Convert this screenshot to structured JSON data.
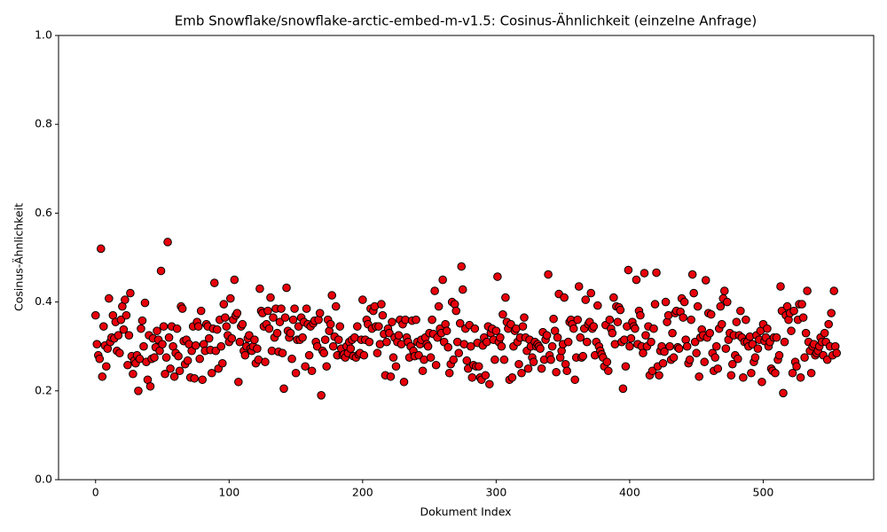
{
  "chart_data": {
    "type": "scatter",
    "title": "Emb Snowflake/snowflake-arctic-embed-m-v1.5: Cosinus-Ähnlichkeit (einzelne Anfrage)",
    "x_label": "Dokument Index",
    "y_label": "Cosinus-Ähnlichkeit",
    "color": "#e8000b",
    "edge_color": "#000000",
    "grid": false,
    "xlim": [
      -27.75,
      582.75
    ],
    "ylim": [
      0,
      1
    ],
    "xticks": [
      0,
      100,
      200,
      300,
      400,
      500
    ],
    "yticks": [
      {
        "value": 0,
        "label": "0.0"
      },
      {
        "value": 0.2,
        "label": "0.2"
      },
      {
        "value": 0.4,
        "label": "0.4"
      },
      {
        "value": 0.6,
        "label": "0.6"
      },
      {
        "value": 0.8,
        "label": "0.8"
      },
      {
        "value": 1,
        "label": "1.0"
      }
    ],
    "x": [
      0,
      1,
      2,
      3,
      4,
      5,
      6,
      7,
      8,
      9,
      10,
      11,
      12,
      13,
      14,
      15,
      16,
      17,
      18,
      19,
      20,
      21,
      22,
      23,
      24,
      25,
      26,
      27,
      28,
      29,
      30,
      31,
      32,
      33,
      34,
      35,
      36,
      37,
      38,
      39,
      40,
      41,
      42,
      43,
      44,
      45,
      46,
      47,
      48,
      49,
      50,
      51,
      52,
      53,
      54,
      55,
      56,
      57,
      58,
      59,
      60,
      61,
      62,
      63,
      64,
      65,
      66,
      67,
      68,
      69,
      70,
      71,
      72,
      73,
      74,
      75,
      76,
      77,
      78,
      79,
      80,
      81,
      82,
      83,
      84,
      85,
      86,
      87,
      88,
      89,
      90,
      91,
      92,
      93,
      94,
      95,
      96,
      97,
      98,
      99,
      100,
      101,
      102,
      103,
      104,
      105,
      106,
      107,
      108,
      109,
      110,
      111,
      112,
      113,
      114,
      115,
      116,
      117,
      118,
      119,
      120,
      121,
      122,
      123,
      124,
      125,
      126,
      127,
      128,
      129,
      130,
      131,
      132,
      133,
      134,
      135,
      136,
      137,
      138,
      139,
      140,
      141,
      142,
      143,
      144,
      145,
      146,
      147,
      148,
      149,
      150,
      151,
      152,
      153,
      154,
      155,
      156,
      157,
      158,
      159,
      160,
      161,
      162,
      163,
      164,
      165,
      166,
      167,
      168,
      169,
      170,
      171,
      172,
      173,
      174,
      175,
      176,
      177,
      178,
      179,
      180,
      181,
      182,
      183,
      184,
      185,
      186,
      187,
      188,
      189,
      190,
      191,
      192,
      193,
      194,
      195,
      196,
      197,
      198,
      199,
      200,
      201,
      202,
      203,
      204,
      205,
      206,
      207,
      208,
      209,
      210,
      211,
      212,
      213,
      214,
      215,
      216,
      217,
      218,
      219,
      220,
      221,
      222,
      223,
      224,
      225,
      226,
      227,
      228,
      229,
      230,
      231,
      232,
      233,
      234,
      235,
      236,
      237,
      238,
      239,
      240,
      241,
      242,
      243,
      244,
      245,
      246,
      247,
      248,
      249,
      250,
      251,
      252,
      253,
      254,
      255,
      256,
      257,
      258,
      259,
      260,
      261,
      262,
      263,
      264,
      265,
      266,
      267,
      268,
      269,
      270,
      271,
      272,
      273,
      274,
      275,
      276,
      277,
      278,
      279,
      280,
      281,
      282,
      283,
      284,
      285,
      286,
      287,
      288,
      289,
      290,
      291,
      292,
      293,
      294,
      295,
      296,
      297,
      298,
      299,
      300,
      301,
      302,
      303,
      304,
      305,
      306,
      307,
      308,
      309,
      310,
      311,
      312,
      313,
      314,
      315,
      316,
      317,
      318,
      319,
      320,
      321,
      322,
      323,
      324,
      325,
      326,
      327,
      328,
      329,
      330,
      331,
      332,
      333,
      334,
      335,
      336,
      337,
      338,
      339,
      340,
      341,
      342,
      343,
      344,
      345,
      346,
      347,
      348,
      349,
      350,
      351,
      352,
      353,
      354,
      355,
      356,
      357,
      358,
      359,
      360,
      361,
      362,
      363,
      364,
      365,
      366,
      367,
      368,
      369,
      370,
      371,
      372,
      373,
      374,
      375,
      376,
      377,
      378,
      379,
      380,
      381,
      382,
      383,
      384,
      385,
      386,
      387,
      388,
      389,
      390,
      391,
      392,
      393,
      394,
      395,
      396,
      397,
      398,
      399,
      400,
      401,
      402,
      403,
      404,
      405,
      406,
      407,
      408,
      409,
      410,
      411,
      412,
      413,
      414,
      415,
      416,
      417,
      418,
      419,
      420,
      421,
      422,
      423,
      424,
      425,
      426,
      427,
      428,
      429,
      430,
      431,
      432,
      433,
      434,
      435,
      436,
      437,
      438,
      439,
      440,
      441,
      442,
      443,
      444,
      445,
      446,
      447,
      448,
      449,
      450,
      451,
      452,
      453,
      454,
      455,
      456,
      457,
      458,
      459,
      460,
      461,
      462,
      463,
      464,
      465,
      466,
      467,
      468,
      469,
      470,
      471,
      472,
      473,
      474,
      475,
      476,
      477,
      478,
      479,
      480,
      481,
      482,
      483,
      484,
      485,
      486,
      487,
      488,
      489,
      490,
      491,
      492,
      493,
      494,
      495,
      496,
      497,
      498,
      499,
      500,
      501,
      502,
      503,
      504,
      505,
      506,
      507,
      508,
      509,
      510,
      511,
      512,
      513,
      514,
      515,
      516,
      517,
      518,
      519,
      520,
      521,
      522,
      523,
      524,
      525,
      526,
      527,
      528,
      529,
      530,
      531,
      532,
      533,
      534,
      535,
      536,
      537,
      538,
      539,
      540,
      541,
      542,
      543,
      544,
      545,
      546,
      547,
      548,
      549,
      550,
      551,
      552,
      553,
      554,
      555
    ],
    "values": [
      0.37,
      0.305,
      0.28,
      0.272,
      0.52,
      0.232,
      0.345,
      0.302,
      0.255,
      0.295,
      0.408,
      0.31,
      0.32,
      0.37,
      0.318,
      0.355,
      0.29,
      0.325,
      0.285,
      0.36,
      0.39,
      0.338,
      0.405,
      0.37,
      0.258,
      0.325,
      0.42,
      0.278,
      0.238,
      0.268,
      0.262,
      0.28,
      0.2,
      0.272,
      0.34,
      0.358,
      0.3,
      0.398,
      0.265,
      0.225,
      0.325,
      0.21,
      0.272,
      0.318,
      0.275,
      0.298,
      0.335,
      0.315,
      0.29,
      0.47,
      0.305,
      0.345,
      0.238,
      0.275,
      0.535,
      0.32,
      0.25,
      0.345,
      0.3,
      0.232,
      0.285,
      0.34,
      0.278,
      0.245,
      0.39,
      0.385,
      0.312,
      0.26,
      0.315,
      0.268,
      0.305,
      0.23,
      0.29,
      0.345,
      0.228,
      0.302,
      0.355,
      0.345,
      0.272,
      0.38,
      0.225,
      0.305,
      0.29,
      0.35,
      0.345,
      0.318,
      0.292,
      0.24,
      0.34,
      0.443,
      0.29,
      0.338,
      0.25,
      0.36,
      0.3,
      0.262,
      0.395,
      0.365,
      0.345,
      0.325,
      0.31,
      0.408,
      0.318,
      0.36,
      0.45,
      0.37,
      0.375,
      0.22,
      0.31,
      0.345,
      0.35,
      0.29,
      0.28,
      0.3,
      0.318,
      0.325,
      0.295,
      0.29,
      0.3,
      0.315,
      0.262,
      0.295,
      0.27,
      0.43,
      0.38,
      0.375,
      0.345,
      0.265,
      0.35,
      0.38,
      0.34,
      0.41,
      0.29,
      0.365,
      0.32,
      0.385,
      0.33,
      0.288,
      0.355,
      0.385,
      0.285,
      0.205,
      0.365,
      0.432,
      0.335,
      0.32,
      0.33,
      0.272,
      0.36,
      0.385,
      0.24,
      0.315,
      0.345,
      0.315,
      0.365,
      0.32,
      0.355,
      0.255,
      0.385,
      0.35,
      0.28,
      0.345,
      0.245,
      0.352,
      0.358,
      0.31,
      0.3,
      0.36,
      0.375,
      0.19,
      0.29,
      0.285,
      0.315,
      0.255,
      0.36,
      0.335,
      0.35,
      0.415,
      0.3,
      0.322,
      0.39,
      0.28,
      0.315,
      0.345,
      0.295,
      0.28,
      0.282,
      0.275,
      0.3,
      0.285,
      0.31,
      0.295,
      0.315,
      0.278,
      0.32,
      0.275,
      0.345,
      0.282,
      0.285,
      0.315,
      0.405,
      0.28,
      0.315,
      0.36,
      0.35,
      0.31,
      0.385,
      0.34,
      0.38,
      0.39,
      0.345,
      0.285,
      0.345,
      0.305,
      0.395,
      0.37,
      0.328,
      0.235,
      0.31,
      0.34,
      0.33,
      0.232,
      0.355,
      0.275,
      0.32,
      0.255,
      0.31,
      0.325,
      0.36,
      0.305,
      0.35,
      0.22,
      0.36,
      0.32,
      0.31,
      0.275,
      0.3,
      0.358,
      0.29,
      0.278,
      0.36,
      0.31,
      0.28,
      0.305,
      0.315,
      0.245,
      0.27,
      0.32,
      0.305,
      0.3,
      0.33,
      0.275,
      0.36,
      0.328,
      0.425,
      0.258,
      0.32,
      0.39,
      0.34,
      0.33,
      0.45,
      0.31,
      0.35,
      0.335,
      0.298,
      0.24,
      0.26,
      0.4,
      0.27,
      0.395,
      0.38,
      0.31,
      0.285,
      0.352,
      0.48,
      0.428,
      0.305,
      0.34,
      0.268,
      0.25,
      0.348,
      0.3,
      0.23,
      0.258,
      0.34,
      0.255,
      0.308,
      0.255,
      0.23,
      0.225,
      0.302,
      0.32,
      0.235,
      0.31,
      0.345,
      0.215,
      0.33,
      0.34,
      0.315,
      0.27,
      0.335,
      0.457,
      0.31,
      0.32,
      0.3,
      0.372,
      0.27,
      0.41,
      0.355,
      0.34,
      0.225,
      0.35,
      0.23,
      0.3,
      0.335,
      0.34,
      0.31,
      0.26,
      0.32,
      0.24,
      0.345,
      0.365,
      0.32,
      0.29,
      0.25,
      0.315,
      0.3,
      0.275,
      0.265,
      0.31,
      0.3,
      0.305,
      0.3,
      0.295,
      0.25,
      0.332,
      0.27,
      0.315,
      0.325,
      0.462,
      0.28,
      0.27,
      0.3,
      0.362,
      0.335,
      0.242,
      0.32,
      0.418,
      0.275,
      0.29,
      0.305,
      0.41,
      0.26,
      0.245,
      0.31,
      0.355,
      0.36,
      0.35,
      0.34,
      0.225,
      0.275,
      0.36,
      0.435,
      0.32,
      0.275,
      0.278,
      0.34,
      0.405,
      0.31,
      0.35,
      0.355,
      0.42,
      0.34,
      0.345,
      0.28,
      0.31,
      0.392,
      0.3,
      0.29,
      0.282,
      0.275,
      0.255,
      0.348,
      0.265,
      0.245,
      0.36,
      0.34,
      0.33,
      0.41,
      0.305,
      0.39,
      0.355,
      0.388,
      0.382,
      0.31,
      0.205,
      0.315,
      0.255,
      0.345,
      0.472,
      0.3,
      0.318,
      0.355,
      0.345,
      0.34,
      0.45,
      0.305,
      0.38,
      0.37,
      0.3,
      0.285,
      0.465,
      0.325,
      0.3,
      0.345,
      0.235,
      0.31,
      0.245,
      0.34,
      0.395,
      0.466,
      0.255,
      0.235,
      0.29,
      0.3,
      0.262,
      0.288,
      0.4,
      0.355,
      0.37,
      0.3,
      0.27,
      0.33,
      0.275,
      0.375,
      0.38,
      0.298,
      0.295,
      0.378,
      0.408,
      0.365,
      0.4,
      0.315,
      0.3,
      0.262,
      0.27,
      0.36,
      0.462,
      0.42,
      0.31,
      0.285,
      0.39,
      0.232,
      0.32,
      0.338,
      0.325,
      0.265,
      0.449,
      0.32,
      0.375,
      0.33,
      0.372,
      0.285,
      0.245,
      0.275,
      0.3,
      0.25,
      0.34,
      0.39,
      0.35,
      0.408,
      0.425,
      0.295,
      0.4,
      0.315,
      0.33,
      0.235,
      0.26,
      0.325,
      0.28,
      0.355,
      0.272,
      0.325,
      0.38,
      0.32,
      0.23,
      0.31,
      0.36,
      0.31,
      0.3,
      0.322,
      0.24,
      0.305,
      0.265,
      0.275,
      0.325,
      0.295,
      0.315,
      0.335,
      0.22,
      0.35,
      0.312,
      0.32,
      0.34,
      0.3,
      0.31,
      0.25,
      0.245,
      0.32,
      0.24,
      0.32,
      0.27,
      0.28,
      0.435,
      0.38,
      0.195,
      0.31,
      0.37,
      0.39,
      0.36,
      0.375,
      0.335,
      0.24,
      0.38,
      0.265,
      0.255,
      0.36,
      0.395,
      0.23,
      0.395,
      0.365,
      0.275,
      0.33,
      0.425,
      0.31,
      0.29,
      0.24,
      0.3,
      0.305,
      0.28,
      0.285,
      0.29,
      0.3,
      0.32,
      0.31,
      0.28,
      0.33,
      0.31,
      0.27,
      0.35,
      0.3,
      0.375,
      0.28,
      0.425,
      0.3,
      0.285
    ]
  }
}
